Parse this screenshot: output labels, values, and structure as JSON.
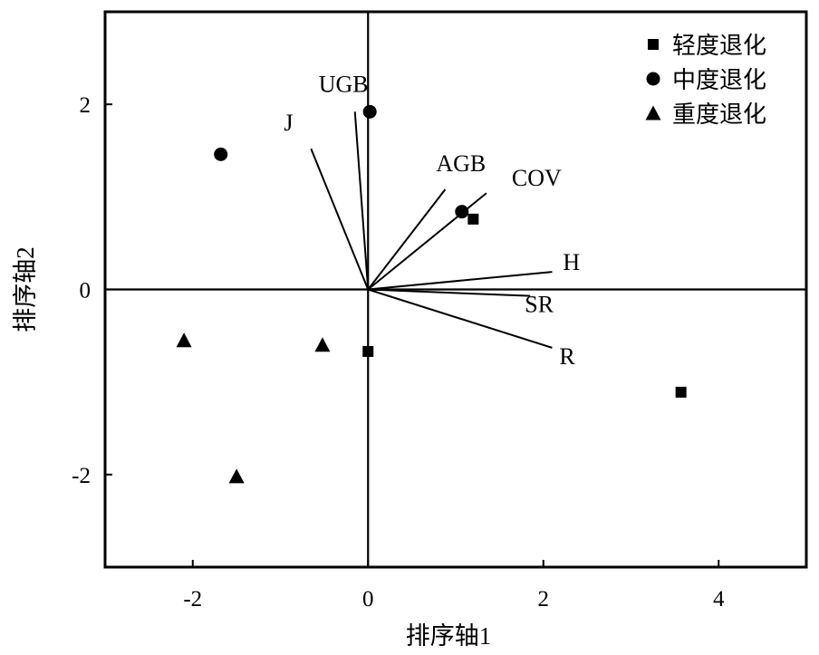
{
  "chart_data": {
    "type": "scatter",
    "title": "",
    "xlabel": "排序轴1",
    "ylabel": "排序轴2",
    "xlim": [
      -3,
      5
    ],
    "ylim": [
      -3,
      3
    ],
    "grid": false,
    "legend_position": "top-right",
    "x_ticks": [
      {
        "value": -2,
        "label": "-2"
      },
      {
        "value": 0,
        "label": "0"
      },
      {
        "value": 2,
        "label": "2"
      },
      {
        "value": 4,
        "label": "4"
      }
    ],
    "y_ticks": [
      {
        "value": 2,
        "label": "2"
      },
      {
        "value": 0,
        "label": "0"
      },
      {
        "value": -2,
        "label": "-2"
      }
    ],
    "series": [
      {
        "name": "轻度退化",
        "marker": "square",
        "points": [
          [
            1.2,
            0.76
          ],
          [
            0.0,
            -0.67
          ],
          [
            3.57,
            -1.11
          ]
        ]
      },
      {
        "name": "中度退化",
        "marker": "circle",
        "points": [
          [
            0.02,
            1.92
          ],
          [
            -1.68,
            1.46
          ],
          [
            1.07,
            0.84
          ]
        ]
      },
      {
        "name": "重度退化",
        "marker": "triangle",
        "points": [
          [
            -2.1,
            -0.55
          ],
          [
            -0.52,
            -0.6
          ],
          [
            -1.5,
            -2.02
          ]
        ]
      }
    ],
    "vectors": [
      {
        "label": "UGB",
        "end": [
          -0.15,
          1.92
        ]
      },
      {
        "label": "J",
        "end": [
          -0.65,
          1.52
        ]
      },
      {
        "label": "AGB",
        "end": [
          0.88,
          1.08
        ]
      },
      {
        "label": "COV",
        "end": [
          1.35,
          1.04
        ]
      },
      {
        "label": "H",
        "end": [
          2.1,
          0.19
        ]
      },
      {
        "label": "SR",
        "end": [
          1.85,
          -0.07
        ]
      },
      {
        "label": "R",
        "end": [
          2.1,
          -0.63
        ]
      }
    ]
  }
}
